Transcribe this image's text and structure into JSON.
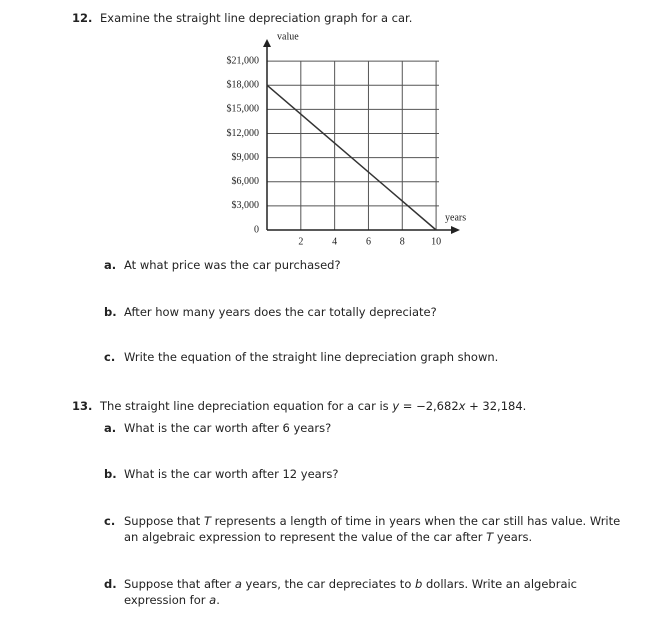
{
  "problems": [
    {
      "number": "12.",
      "text": [
        "Examine the straight line depreciation graph for a car."
      ],
      "parts": [
        {
          "letter": "a.",
          "text": [
            "At what price was the car purchased?"
          ]
        },
        {
          "letter": "b.",
          "text": [
            "After how many years does the car totally depreciate?"
          ]
        },
        {
          "letter": "c.",
          "text": [
            "Write the equation of the straight line depreciation graph shown."
          ]
        }
      ]
    },
    {
      "number": "13.",
      "text": [
        "The straight line depreciation equation for a car is ",
        "y",
        " = −2,682",
        "x",
        " + 32,184."
      ],
      "parts": [
        {
          "letter": "a.",
          "text": [
            "What is the car worth after 6 years?"
          ]
        },
        {
          "letter": "b.",
          "text": [
            "What is the car worth after 12 years?"
          ]
        },
        {
          "letter": "c.",
          "text": [
            "Suppose that ",
            "T",
            " represents a length of time in years when the car still has value. Write an algebraic expression to represent the value of the car after ",
            "T",
            " years."
          ]
        },
        {
          "letter": "d.",
          "text": [
            "Suppose that after ",
            "a",
            " years, the car depreciates to ",
            "b",
            " dollars. Write an algebraic expression for ",
            "a",
            "."
          ]
        }
      ]
    }
  ],
  "chart_data": {
    "type": "line",
    "ylabel": "value",
    "xlabel": "years",
    "x": [
      0,
      10
    ],
    "values": [
      18000,
      0
    ],
    "color": "#333333",
    "xlim": [
      0,
      11
    ],
    "ylim": [
      0,
      22500
    ],
    "xticks": [
      2,
      4,
      6,
      8,
      10
    ],
    "yticks": [
      0,
      {
        "value": 3000,
        "label": "$3,000"
      },
      {
        "value": 6000,
        "label": "$6,000"
      },
      {
        "value": 9000,
        "label": "$9,000"
      },
      {
        "value": 12000,
        "label": "$12,000"
      },
      {
        "value": 15000,
        "label": "$15,000"
      },
      {
        "value": 18000,
        "label": "$18,000"
      },
      {
        "value": 21000,
        "label": "$21,000"
      }
    ],
    "grid": true
  }
}
